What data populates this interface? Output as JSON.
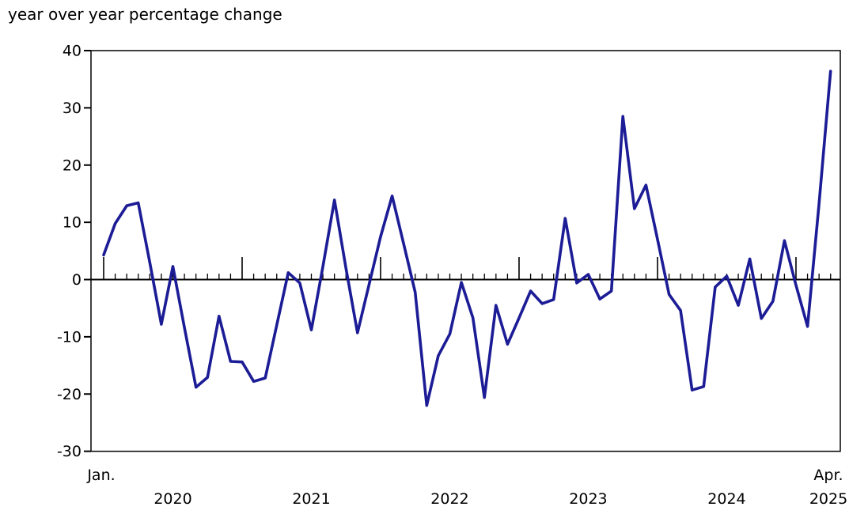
{
  "title": "year over year percentage change",
  "chart_data": {
    "type": "line",
    "title": "year over year percentage change",
    "frequency": "monthly",
    "x_first_point_label": "Jan.",
    "x_last_point_label": "Apr.",
    "year_labels": [
      "2020",
      "2021",
      "2022",
      "2023",
      "2024",
      "2025"
    ],
    "categories": [
      "Jan 2020",
      "Feb 2020",
      "Mar 2020",
      "Apr 2020",
      "May 2020",
      "Jun 2020",
      "Jul 2020",
      "Aug 2020",
      "Sep 2020",
      "Oct 2020",
      "Nov 2020",
      "Dec 2020",
      "Jan 2021",
      "Feb 2021",
      "Mar 2021",
      "Apr 2021",
      "May 2021",
      "Jun 2021",
      "Jul 2021",
      "Aug 2021",
      "Sep 2021",
      "Oct 2021",
      "Nov 2021",
      "Dec 2021",
      "Jan 2022",
      "Feb 2022",
      "Mar 2022",
      "Apr 2022",
      "May 2022",
      "Jun 2022",
      "Jul 2022",
      "Aug 2022",
      "Sep 2022",
      "Oct 2022",
      "Nov 2022",
      "Dec 2022",
      "Jan 2023",
      "Feb 2023",
      "Mar 2023",
      "Apr 2023",
      "May 2023",
      "Jun 2023",
      "Jul 2023",
      "Aug 2023",
      "Sep 2023",
      "Oct 2023",
      "Nov 2023",
      "Dec 2023",
      "Jan 2024",
      "Feb 2024",
      "Mar 2024",
      "Apr 2024",
      "May 2024",
      "Jun 2024",
      "Jul 2024",
      "Aug 2024",
      "Sep 2024",
      "Oct 2024",
      "Nov 2024",
      "Dec 2024",
      "Jan 2025",
      "Feb 2025",
      "Mar 2025",
      "Apr 2025"
    ],
    "values": [
      4.3,
      9.8,
      12.9,
      13.4,
      3.0,
      -7.8,
      2.3,
      -8.4,
      -18.8,
      -17.1,
      -6.4,
      -14.3,
      -14.4,
      -17.8,
      -17.2,
      -8.0,
      1.2,
      -0.6,
      -8.8,
      2.3,
      13.9,
      2.0,
      -9.3,
      -0.9,
      7.5,
      14.6,
      6.2,
      -2.2,
      -22.0,
      -13.3,
      -9.5,
      -0.5,
      -6.7,
      -20.6,
      -4.5,
      -11.3,
      -6.7,
      -2.0,
      -4.2,
      -3.5,
      10.7,
      -0.6,
      0.9,
      -3.4,
      -2.0,
      28.5,
      12.4,
      16.5,
      7.0,
      -2.6,
      -5.4,
      -19.3,
      -18.7,
      -1.3,
      0.6,
      -4.5,
      3.6,
      -6.8,
      -3.8,
      6.8,
      -1.0,
      -8.2,
      13.2,
      36.4
    ],
    "xlabel": "",
    "ylabel": "",
    "ylim": [
      -30,
      40
    ],
    "ytick_interval": 10,
    "grid": false,
    "legend": "none",
    "line_color": "#1c1c96",
    "axis_color": "#000000"
  }
}
